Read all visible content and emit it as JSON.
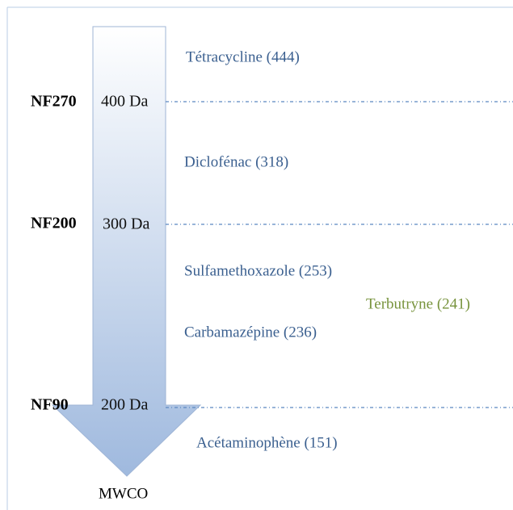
{
  "membranes": [
    {
      "name": "NF270",
      "mwco": "400 Da"
    },
    {
      "name": "NF200",
      "mwco": "300 Da"
    },
    {
      "name": "NF90",
      "mwco": "200 Da"
    }
  ],
  "compounds": [
    "Tétracycline (444)",
    "Diclofénac (318)",
    "Sulfamethoxazole (253)",
    "Terbutryne (241)",
    "Carbamazépine (236)",
    "Acétaminophène (151)"
  ],
  "axis_label": "MWCO"
}
